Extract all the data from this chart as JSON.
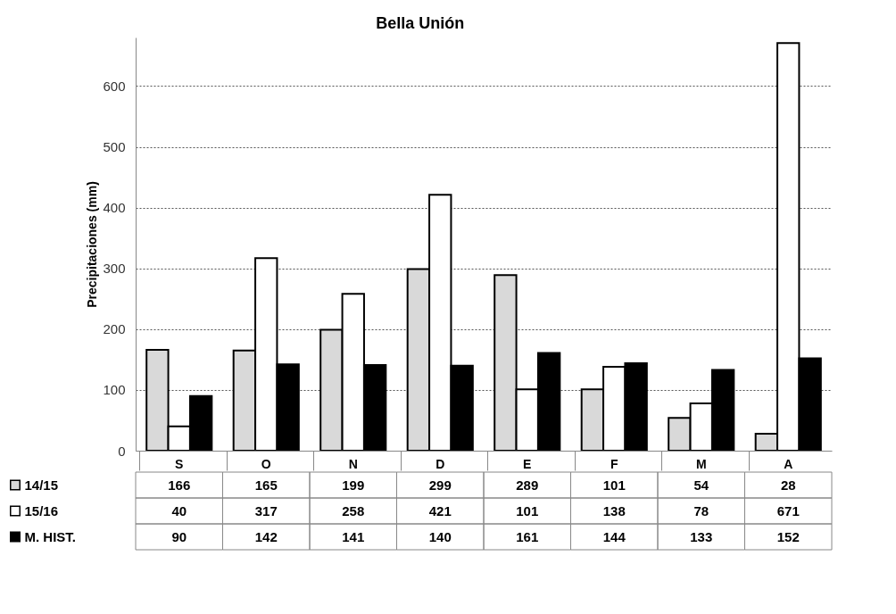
{
  "chart_data": {
    "type": "bar",
    "title": "Bella Unión",
    "ylabel": "Precipitaciones (mm)",
    "categories": [
      "S",
      "O",
      "N",
      "D",
      "E",
      "F",
      "M",
      "A"
    ],
    "series": [
      {
        "name": "14/15",
        "color": "#d9d9d9",
        "values": [
          166,
          165,
          199,
          299,
          289,
          101,
          54,
          28
        ]
      },
      {
        "name": "15/16",
        "color": "#ffffff",
        "values": [
          40,
          317,
          258,
          421,
          101,
          138,
          78,
          671
        ]
      },
      {
        "name": "M. HIST.",
        "color": "#000000",
        "values": [
          90,
          142,
          141,
          140,
          161,
          144,
          133,
          152
        ]
      }
    ],
    "ylim": [
      0,
      680
    ],
    "yticks": [
      0,
      100,
      200,
      300,
      400,
      500,
      600
    ],
    "grid": "y",
    "legend": "bottom",
    "data_labels": true
  }
}
